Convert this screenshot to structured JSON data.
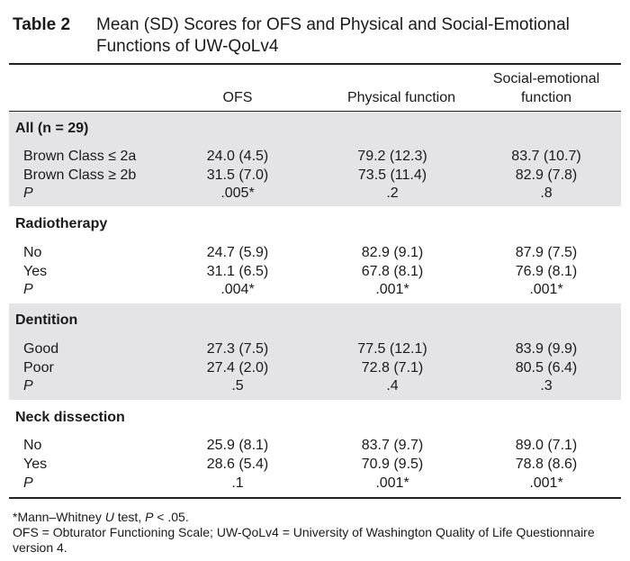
{
  "caption": {
    "label": "Table 2",
    "title": "Mean (SD) Scores for OFS and Physical and Social-Emotional Functions of UW-QoLv4"
  },
  "columns": {
    "ofs": "OFS",
    "physical": "Physical function",
    "social_line1": "Social-emotional",
    "social_line2": "function"
  },
  "sections": [
    {
      "title": "All (n = 29)",
      "rows": [
        {
          "label": "Brown Class ≤ 2a",
          "ofs": "24.0 (4.5)",
          "physical": "79.2 (12.3)",
          "social": "83.7 (10.7)"
        },
        {
          "label": "Brown Class ≥ 2b",
          "ofs": "31.5 (7.0)",
          "physical": "73.5 (11.4)",
          "social": "82.9 (7.8)"
        },
        {
          "label": "P",
          "ofs": ".005*",
          "physical": ".2",
          "social": ".8"
        }
      ]
    },
    {
      "title": "Radiotherapy",
      "rows": [
        {
          "label": "No",
          "ofs": "24.7 (5.9)",
          "physical": "82.9 (9.1)",
          "social": "87.9 (7.5)"
        },
        {
          "label": "Yes",
          "ofs": "31.1 (6.5)",
          "physical": "67.8 (8.1)",
          "social": "76.9 (8.1)"
        },
        {
          "label": "P",
          "ofs": ".004*",
          "physical": ".001*",
          "social": ".001*"
        }
      ]
    },
    {
      "title": "Dentition",
      "rows": [
        {
          "label": "Good",
          "ofs": "27.3 (7.5)",
          "physical": "77.5 (12.1)",
          "social": "83.9 (9.9)"
        },
        {
          "label": "Poor",
          "ofs": "27.4 (2.0)",
          "physical": "72.8 (7.1)",
          "social": "80.5 (6.4)"
        },
        {
          "label": "P",
          "ofs": ".5",
          "physical": ".4",
          "social": ".3"
        }
      ]
    },
    {
      "title": "Neck dissection",
      "rows": [
        {
          "label": "No",
          "ofs": "25.9 (8.1)",
          "physical": "83.7 (9.7)",
          "social": "89.0 (7.1)"
        },
        {
          "label": "Yes",
          "ofs": "28.6 (5.4)",
          "physical": "70.9 (9.5)",
          "social": "78.8 (8.6)"
        },
        {
          "label": "P",
          "ofs": ".1",
          "physical": ".001*",
          "social": ".001*"
        }
      ]
    }
  ],
  "footnotes": {
    "n1_pre": "*Mann–Whitney ",
    "n1_u": "U",
    "n1_mid": " test, ",
    "n1_p": "P",
    "n1_post": " < .05.",
    "n2": "OFS = Obturator Functioning Scale; UW-QoLv4 = University of Washington Quality of Life Questionnaire version 4."
  }
}
